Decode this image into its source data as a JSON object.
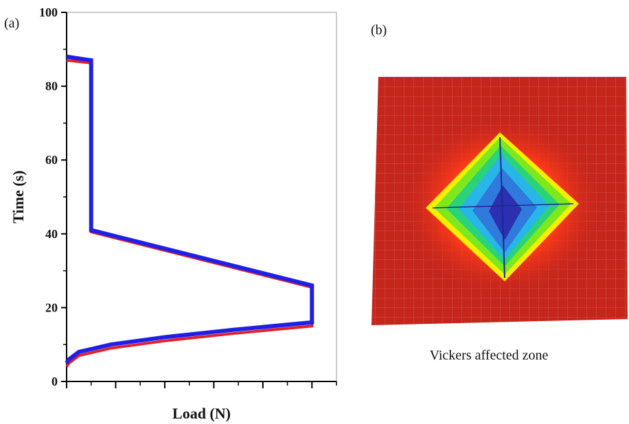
{
  "panel_a_label": "(a)",
  "chart_data": {
    "type": "line",
    "xlabel": "Load (N)",
    "ylabel": "Time (s)",
    "xlim": [
      0,
      11
    ],
    "xticks": [
      0,
      1,
      2,
      3,
      4,
      5,
      6,
      7,
      8,
      9,
      10,
      11
    ],
    "ylim": [
      0,
      100
    ],
    "yticks": [
      0,
      20,
      40,
      60,
      80,
      100
    ],
    "yminor": [
      10,
      30,
      50,
      70,
      90
    ],
    "series": [
      {
        "color": "#e0202a",
        "x": [
          0,
          0.1,
          0.5,
          1.8,
          4,
          6.8,
          10,
          10,
          1,
          1,
          0
        ],
        "values": [
          4,
          5,
          7,
          9,
          11,
          13,
          15,
          25.5,
          40.5,
          86.3,
          87
        ]
      },
      {
        "color": "#1f1fe6",
        "x": [
          0,
          0.1,
          0.5,
          1.8,
          4,
          6.8,
          10,
          10,
          1,
          1,
          0
        ],
        "values": [
          5,
          6,
          8,
          10,
          12,
          14,
          16,
          26,
          41,
          87,
          88
        ]
      }
    ]
  },
  "panel_b": {
    "label": "(b)",
    "caption": "Vickers affected zone"
  }
}
